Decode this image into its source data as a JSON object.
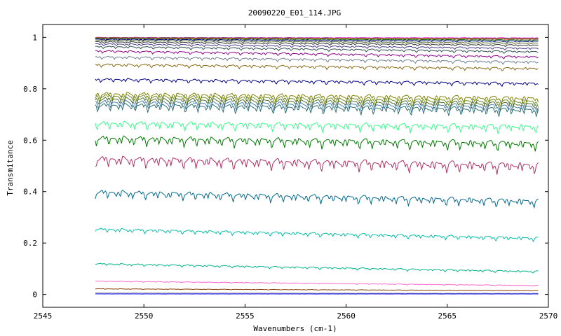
{
  "chart_data": {
    "type": "line",
    "title": "20090220_E01_114.JPG",
    "xlabel": "Wavenumbers (cm-1)",
    "ylabel": "Transmitance",
    "xlim": [
      2545,
      2570
    ],
    "ylim": [
      -0.05,
      1.05
    ],
    "x_ticks": [
      2545,
      2550,
      2555,
      2560,
      2565,
      2570
    ],
    "x_tick_labels": [
      "2545",
      "2550",
      "2555",
      "2560",
      "2565",
      "2570"
    ],
    "y_ticks": [
      0,
      0.2,
      0.4,
      0.6,
      0.8,
      1
    ],
    "y_tick_labels": [
      "0",
      "0.2",
      "0.4",
      "0.6",
      "0.8",
      "1"
    ],
    "x_range_of_data": [
      2547.6,
      2569.5
    ],
    "grid": false,
    "legend": "none",
    "series": [
      {
        "start": 1.0,
        "end": 0.998,
        "color": "#ff00ff",
        "depth": 0.002
      },
      {
        "start": 0.999,
        "end": 0.996,
        "color": "#00aa00",
        "depth": 0.002
      },
      {
        "start": 0.998,
        "end": 0.994,
        "color": "#ff3333",
        "depth": 0.003
      },
      {
        "start": 0.996,
        "end": 0.99,
        "color": "#006400",
        "depth": 0.004
      },
      {
        "start": 0.993,
        "end": 0.985,
        "color": "#000080",
        "depth": 0.005
      },
      {
        "start": 0.989,
        "end": 0.978,
        "color": "#556b2f",
        "depth": 0.006
      },
      {
        "start": 0.983,
        "end": 0.97,
        "color": "#333333",
        "depth": 0.007
      },
      {
        "start": 0.975,
        "end": 0.958,
        "color": "#483d8b",
        "depth": 0.008
      },
      {
        "start": 0.965,
        "end": 0.945,
        "color": "#2f4f4f",
        "depth": 0.009
      },
      {
        "start": 0.948,
        "end": 0.925,
        "color": "#8b008b",
        "depth": 0.01
      },
      {
        "start": 0.925,
        "end": 0.905,
        "color": "#708090",
        "depth": 0.011
      },
      {
        "start": 0.895,
        "end": 0.88,
        "color": "#8b6914",
        "depth": 0.012
      },
      {
        "start": 0.838,
        "end": 0.822,
        "color": "#00008b",
        "depth": 0.014
      },
      {
        "start": 0.782,
        "end": 0.765,
        "color": "#808000",
        "depth": 0.025
      },
      {
        "start": 0.773,
        "end": 0.752,
        "color": "#6b8e23",
        "depth": 0.026
      },
      {
        "start": 0.762,
        "end": 0.742,
        "color": "#556b2f",
        "depth": 0.027
      },
      {
        "start": 0.75,
        "end": 0.732,
        "color": "#4682b4",
        "depth": 0.028
      },
      {
        "start": 0.738,
        "end": 0.72,
        "color": "#2f6f6f",
        "depth": 0.029
      },
      {
        "start": 0.668,
        "end": 0.655,
        "color": "#33ff88",
        "depth": 0.03
      },
      {
        "start": 0.61,
        "end": 0.59,
        "color": "#007a00",
        "depth": 0.035
      },
      {
        "start": 0.53,
        "end": 0.505,
        "color": "#b03060",
        "depth": 0.04
      },
      {
        "start": 0.4,
        "end": 0.365,
        "color": "#00688b",
        "depth": 0.03
      },
      {
        "start": 0.255,
        "end": 0.22,
        "color": "#00bfa5",
        "depth": 0.015
      },
      {
        "start": 0.12,
        "end": 0.09,
        "color": "#00b386",
        "depth": 0.008
      },
      {
        "start": 0.052,
        "end": 0.035,
        "color": "#ff66cc",
        "depth": 0.003
      },
      {
        "start": 0.022,
        "end": 0.015,
        "color": "#8b3a00",
        "depth": 0.002
      },
      {
        "start": 0.006,
        "end": 0.004,
        "color": "#888888",
        "depth": 0.001
      },
      {
        "start": 0.002,
        "end": 0.002,
        "color": "#0000ff",
        "depth": 0.0005
      }
    ]
  }
}
